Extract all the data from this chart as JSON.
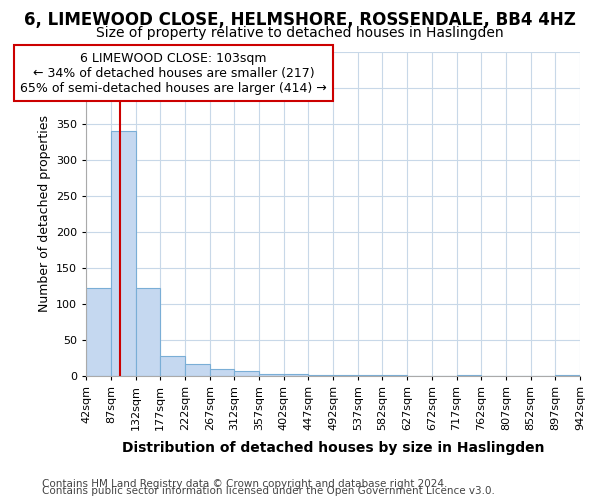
{
  "title": "6, LIMEWOOD CLOSE, HELMSHORE, ROSSENDALE, BB4 4HZ",
  "subtitle": "Size of property relative to detached houses in Haslingden",
  "xlabel": "Distribution of detached houses by size in Haslingden",
  "ylabel": "Number of detached properties",
  "footer1": "Contains HM Land Registry data © Crown copyright and database right 2024.",
  "footer2": "Contains public sector information licensed under the Open Government Licence v3.0.",
  "bar_edges": [
    42,
    87,
    132,
    177,
    222,
    267,
    312,
    357,
    402,
    447,
    492,
    537,
    582,
    627,
    672,
    717,
    762,
    807,
    852,
    897,
    942
  ],
  "bar_heights": [
    122,
    340,
    122,
    28,
    16,
    9,
    6,
    3,
    2,
    1,
    1,
    1,
    1,
    0,
    0,
    1,
    0,
    0,
    0,
    1
  ],
  "bar_color": "#c5d8f0",
  "bar_edgecolor": "#7aaed6",
  "property_size": 103,
  "vline_color": "#cc0000",
  "annotation_line1": "6 LIMEWOOD CLOSE: 103sqm",
  "annotation_line2": "← 34% of detached houses are smaller (217)",
  "annotation_line3": "65% of semi-detached houses are larger (414) →",
  "annotation_boxcolor": "white",
  "annotation_edgecolor": "#cc0000",
  "ylim": [
    0,
    450
  ],
  "bg_color": "#ffffff",
  "plot_bg_color": "#ffffff",
  "grid_color": "#c8d8e8",
  "title_fontsize": 12,
  "subtitle_fontsize": 10,
  "xlabel_fontsize": 10,
  "ylabel_fontsize": 9,
  "tick_fontsize": 8,
  "annotation_fontsize": 9,
  "footer_fontsize": 7.5
}
